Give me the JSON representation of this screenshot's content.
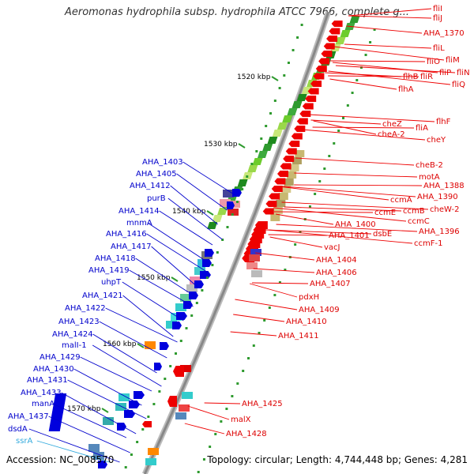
{
  "title": "Aeromonas hydrophila subsp. hydrophila ATCC 7966, complete g...",
  "accession": "Accession: NC_008570",
  "topology": "Topology: circular; Length: 4,744,448 bp; Genes: 4,281",
  "colors": {
    "backbone": "#888888",
    "gene_red": "#ee0000",
    "gene_blue": "#0000dd",
    "gc_green": "#2e9a2e",
    "label_red": "#dd0000",
    "label_blue": "#0000cc",
    "label_cyan": "#33aadd"
  },
  "scale_labels": [
    "1520 kbp",
    "1530 kbp",
    "1540 kbp",
    "1550 kbp",
    "1560 kbp",
    "1570 kbp"
  ],
  "right_labels": [
    "fliI",
    "fliJ",
    "AHA_1370",
    "fliL",
    "fliO",
    "fliM",
    "fliP",
    "fliN",
    "flhB",
    "fliR",
    "fliQ",
    "flhA",
    "flhF",
    "cheZ",
    "fliA",
    "cheA-2",
    "cheY",
    "cheB-2",
    "motA",
    "AHA_1388",
    "ccmA",
    "AHA_1390",
    "cheW-2",
    "ccmB",
    "ccmE",
    "ccmC",
    "AHA_1400",
    "AHA_1396",
    "dsbE",
    "AHA_1401",
    "ccmF-1",
    "vacJ",
    "AHA_1404",
    "AHA_1406",
    "AHA_1407",
    "pdxH",
    "AHA_1409",
    "AHA_1410",
    "AHA_1411",
    "AHA_1425",
    "malX",
    "AHA_1428"
  ],
  "left_labels": [
    "AHA_1403",
    "AHA_1405",
    "AHA_1412",
    "purB",
    "AHA_1414",
    "mnmA",
    "AHA_1416",
    "AHA_1417",
    "AHA_1418",
    "AHA_1419",
    "uhpT",
    "AHA_1421",
    "AHA_1422",
    "AHA_1423",
    "AHA_1424",
    "malI-1",
    "AHA_1429",
    "AHA_1430",
    "AHA_1431",
    "AHA_1433",
    "manA",
    "AHA_1437",
    "dsdA",
    "ssrA"
  ]
}
